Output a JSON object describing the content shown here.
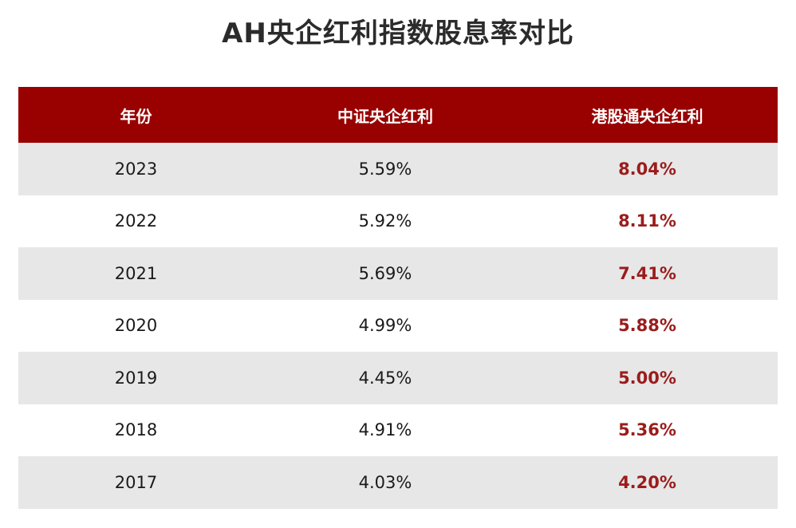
{
  "title": "AH央企红利指数股息率对比",
  "colors": {
    "header_bg": "#990000",
    "header_text": "#ffffff",
    "stripe": "#e7e7e7",
    "highlight_text": "#9b1c1c"
  },
  "chart_data": {
    "type": "table",
    "title": "AH央企红利指数股息率对比",
    "columns": [
      "年份",
      "中证央企红利",
      "港股通央企红利"
    ],
    "rows": [
      [
        "2023",
        "5.59%",
        "8.04%"
      ],
      [
        "2022",
        "5.92%",
        "8.11%"
      ],
      [
        "2021",
        "5.69%",
        "7.41%"
      ],
      [
        "2020",
        "4.99%",
        "5.88%"
      ],
      [
        "2019",
        "4.45%",
        "5.00%"
      ],
      [
        "2018",
        "4.91%",
        "5.36%"
      ],
      [
        "2017",
        "4.03%",
        "4.20%"
      ]
    ]
  }
}
